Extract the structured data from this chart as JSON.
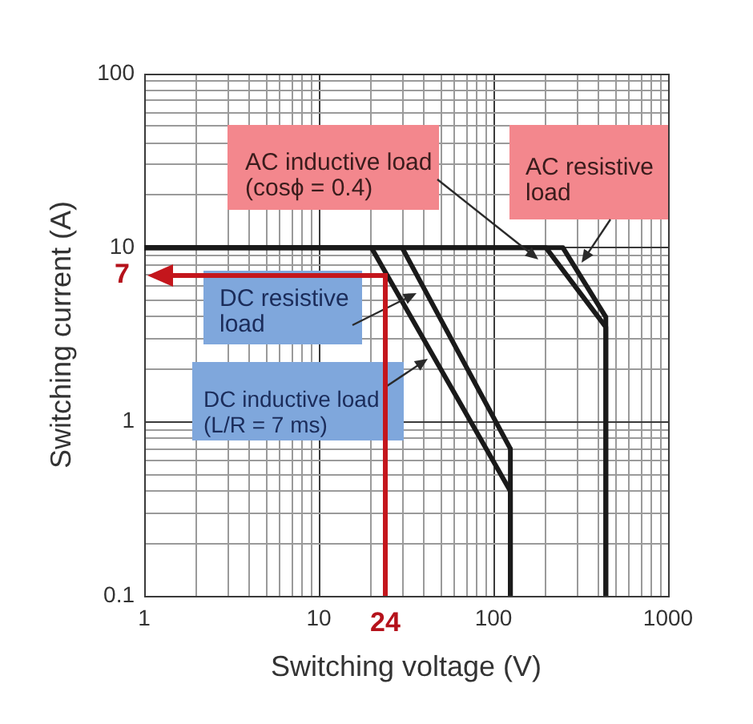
{
  "chart_data": {
    "type": "line",
    "xlabel": "Switching voltage (V)",
    "ylabel": "Switching current (A)",
    "log": "xy",
    "grid": true,
    "xlim": [
      1,
      1000
    ],
    "ylim": [
      0.1,
      100
    ],
    "xticks": [
      1,
      {
        "value": 2,
        "label": null
      },
      {
        "value": 3,
        "label": null
      },
      {
        "value": 4,
        "label": null
      },
      {
        "value": 5,
        "label": null
      },
      {
        "value": 6,
        "label": null
      },
      {
        "value": 7,
        "label": null
      },
      {
        "value": 8,
        "label": null
      },
      {
        "value": 9,
        "label": null
      },
      10,
      {
        "value": 20,
        "label": null
      },
      {
        "value": 30,
        "label": null
      },
      {
        "value": 40,
        "label": null
      },
      {
        "value": 50,
        "label": null
      },
      {
        "value": 60,
        "label": null
      },
      {
        "value": 70,
        "label": null
      },
      {
        "value": 80,
        "label": null
      },
      {
        "value": 90,
        "label": null
      },
      100,
      {
        "value": 200,
        "label": null
      },
      {
        "value": 300,
        "label": null
      },
      {
        "value": 400,
        "label": null
      },
      {
        "value": 500,
        "label": null
      },
      {
        "value": 600,
        "label": null
      },
      {
        "value": 700,
        "label": null
      },
      {
        "value": 800,
        "label": null
      },
      {
        "value": 900,
        "label": null
      },
      1000
    ],
    "yticks": [
      0.1,
      {
        "value": 0.2,
        "label": null
      },
      {
        "value": 0.3,
        "label": null
      },
      {
        "value": 0.4,
        "label": null
      },
      {
        "value": 0.5,
        "label": null
      },
      {
        "value": 0.6,
        "label": null
      },
      {
        "value": 0.7,
        "label": null
      },
      {
        "value": 0.8,
        "label": null
      },
      {
        "value": 0.9,
        "label": null
      },
      1,
      {
        "value": 2,
        "label": null
      },
      {
        "value": 3,
        "label": null
      },
      {
        "value": 4,
        "label": null
      },
      {
        "value": 5,
        "label": null
      },
      {
        "value": 6,
        "label": null
      },
      {
        "value": 7,
        "label": null
      },
      {
        "value": 8,
        "label": null
      },
      {
        "value": 9,
        "label": null
      },
      10,
      {
        "value": 20,
        "label": null
      },
      {
        "value": 30,
        "label": null
      },
      {
        "value": 40,
        "label": null
      },
      {
        "value": 50,
        "label": null
      },
      {
        "value": 60,
        "label": null
      },
      {
        "value": 70,
        "label": null
      },
      {
        "value": 80,
        "label": null
      },
      {
        "value": 90,
        "label": null
      },
      100
    ],
    "series": [
      {
        "name": "AC inductive load (cosϕ = 0.4)",
        "color": "#1a1a1a",
        "x": [
          1,
          200,
          440,
          440
        ],
        "values": [
          10,
          10,
          3.5,
          0.1
        ]
      },
      {
        "name": "AC resistive load",
        "color": "#1a1a1a",
        "x": [
          1,
          250,
          440,
          440
        ],
        "values": [
          10,
          10,
          4,
          0.1
        ]
      },
      {
        "name": "DC resistive load",
        "color": "#1a1a1a",
        "x": [
          1,
          30,
          125,
          125
        ],
        "values": [
          10,
          10,
          0.7,
          0.1
        ]
      },
      {
        "name": "DC inductive load (L/R = 7 ms)",
        "color": "#1a1a1a",
        "x": [
          1,
          20,
          125,
          125
        ],
        "values": [
          10,
          10,
          0.4,
          0.1
        ]
      }
    ],
    "annotations": [
      "7",
      "24"
    ]
  }
}
